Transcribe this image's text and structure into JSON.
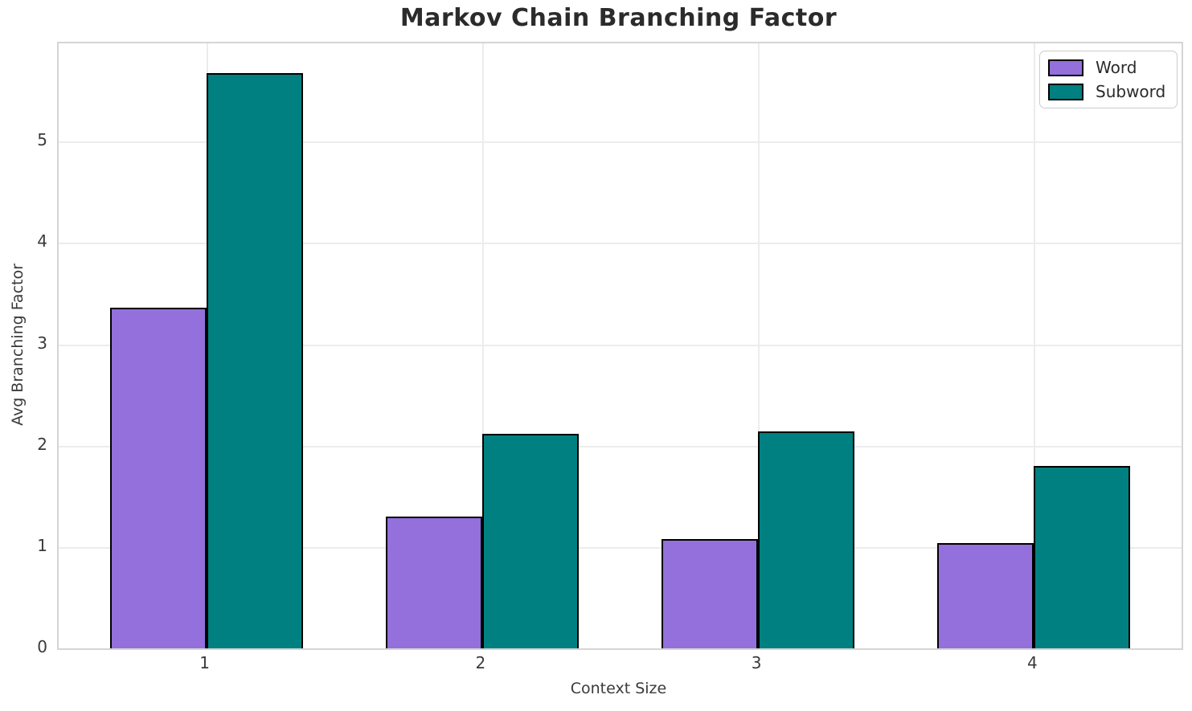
{
  "chart_data": {
    "type": "bar",
    "title": "Markov Chain Branching Factor",
    "xlabel": "Context Size",
    "ylabel": "Avg Branching Factor",
    "categories": [
      "1",
      "2",
      "3",
      "4"
    ],
    "x": [
      1,
      2,
      3,
      4
    ],
    "series": [
      {
        "name": "Word",
        "color": "#9370db",
        "values": [
          3.36,
          1.3,
          1.08,
          1.04
        ]
      },
      {
        "name": "Subword",
        "color": "#008080",
        "values": [
          5.68,
          2.12,
          2.14,
          1.8
        ]
      }
    ],
    "yticks": [
      0,
      1,
      2,
      3,
      4,
      5
    ],
    "ylim": [
      0,
      5.97
    ],
    "xlim": [
      0.465,
      4.535
    ],
    "bar_width": 0.35,
    "bar_edge_color": "#000000",
    "grid": true,
    "legend_position": "upper right",
    "colors": {
      "background": "#ffffff",
      "grid": "#ececec",
      "spine": "#d5d5d5",
      "title_text": "#2b2b2b",
      "tick_text": "#3a3a3a"
    }
  }
}
